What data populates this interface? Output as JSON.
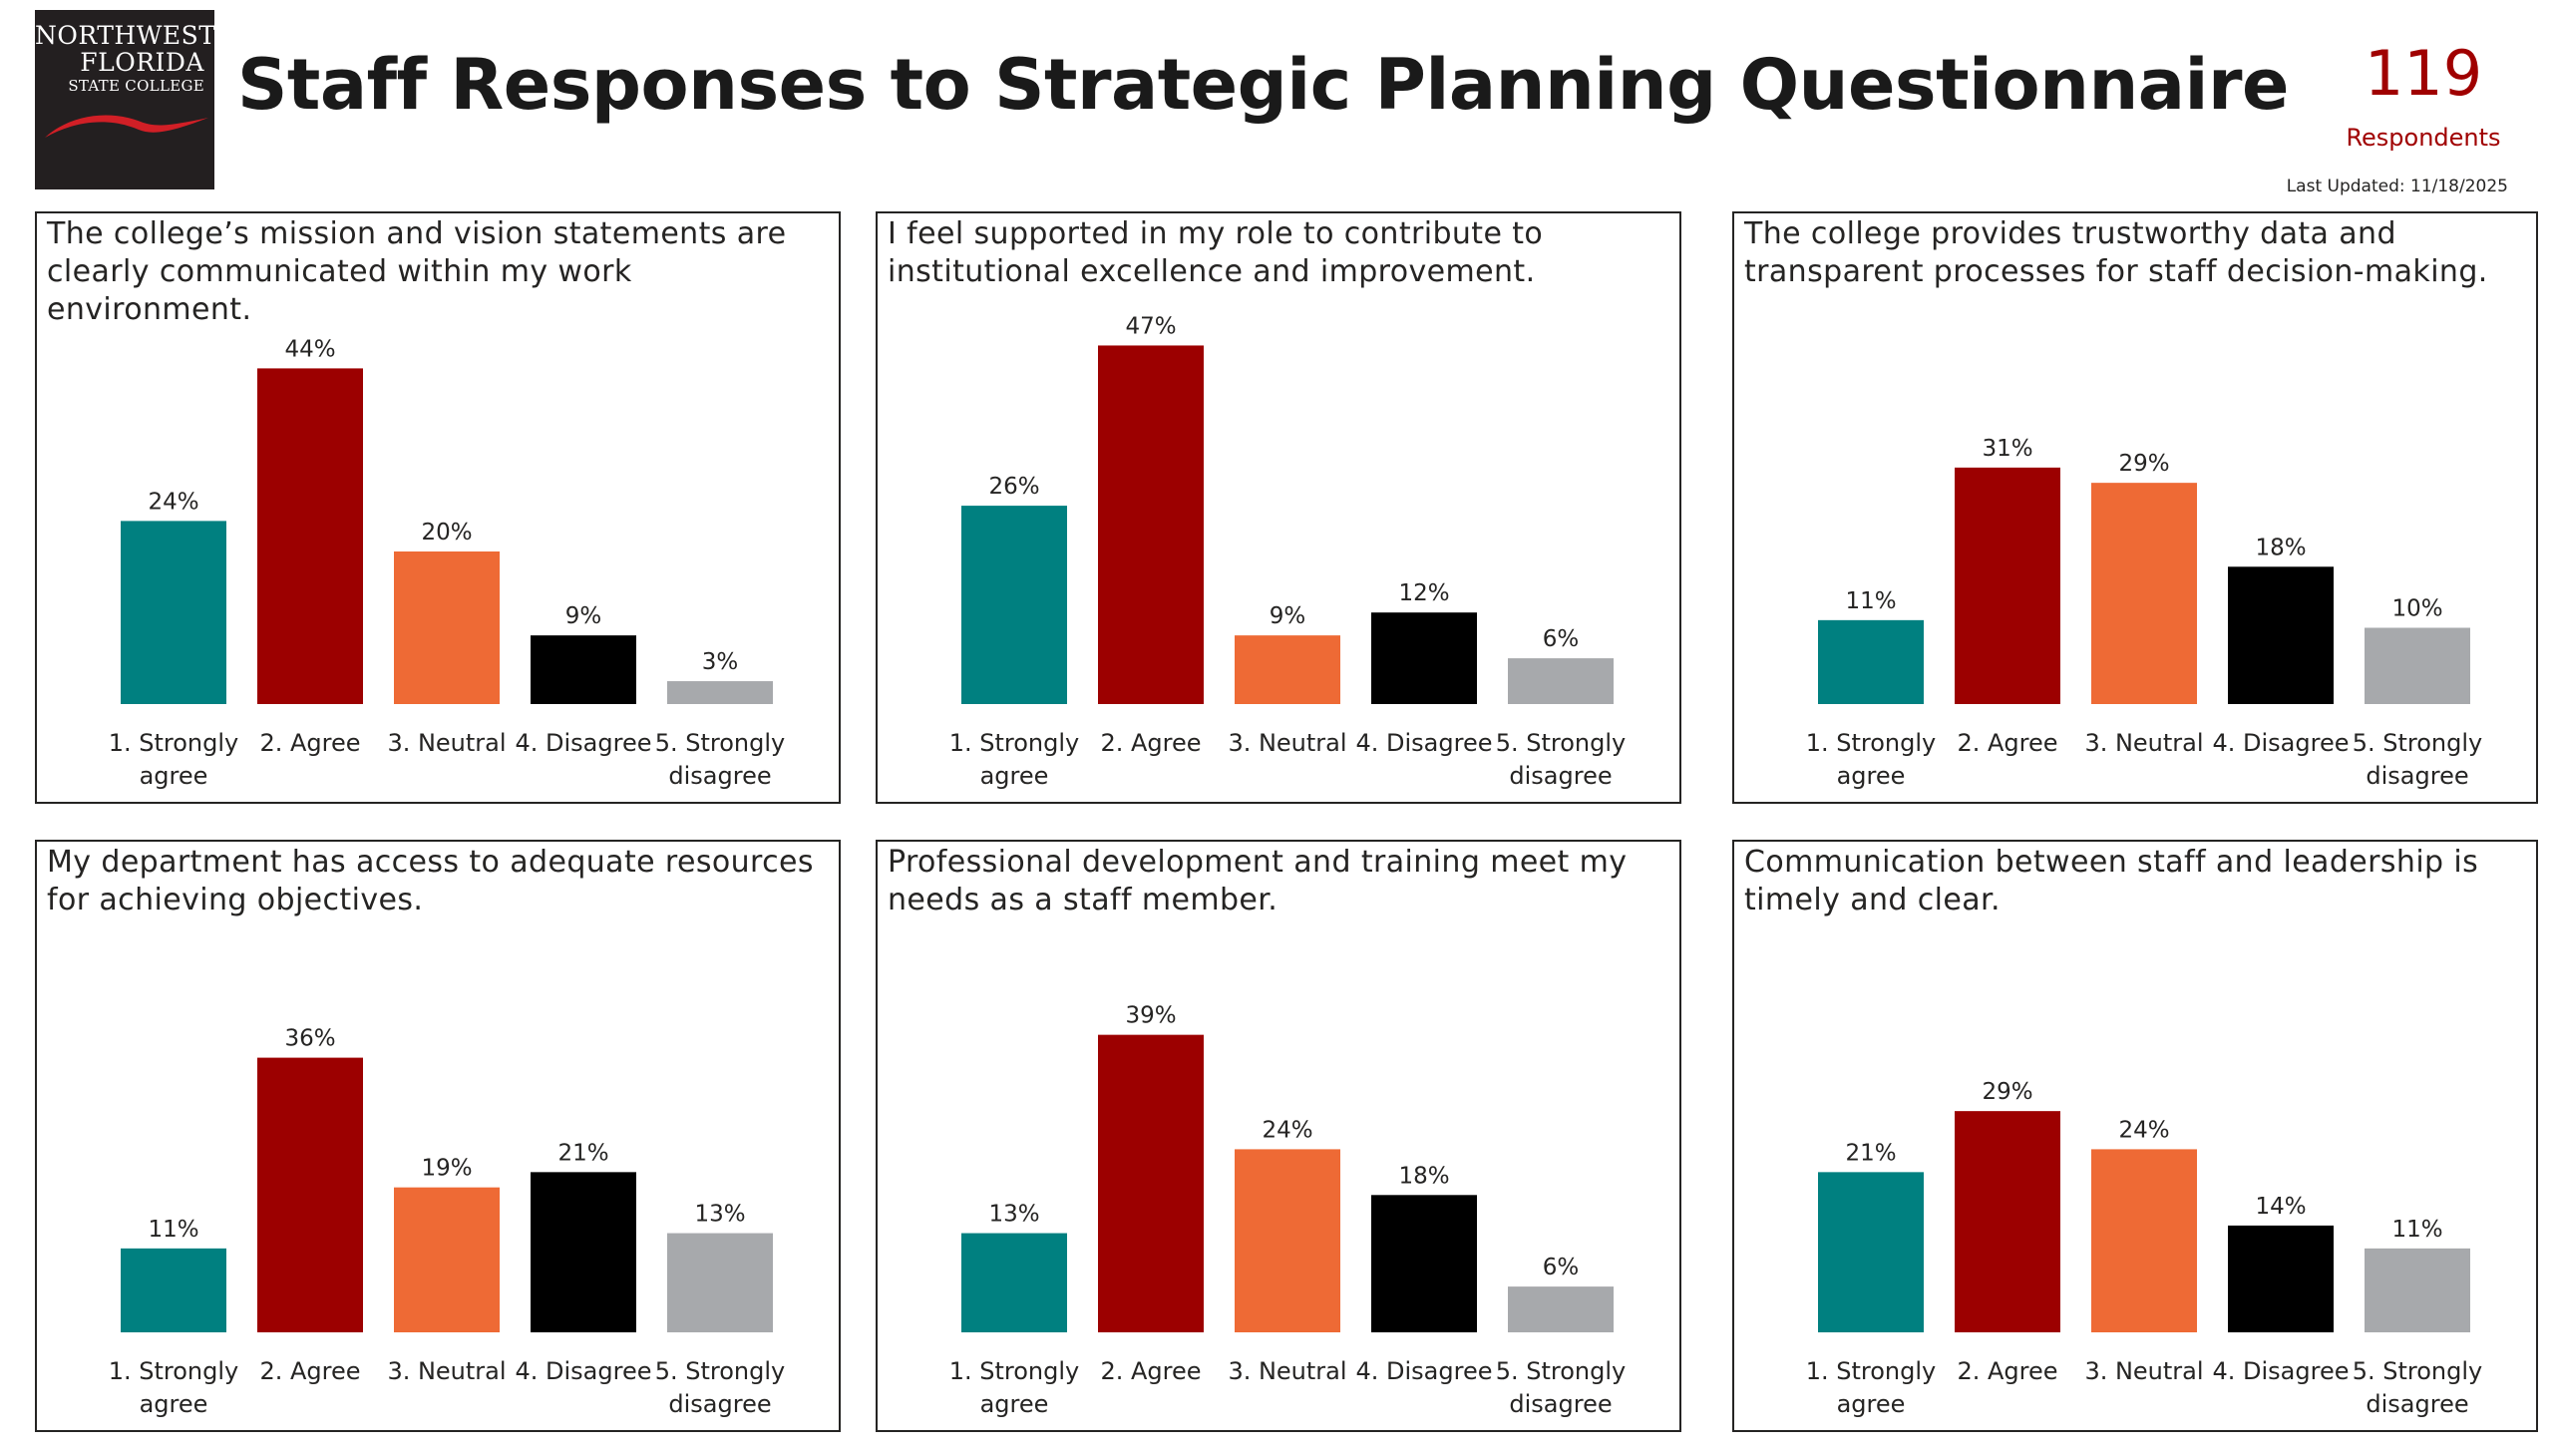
{
  "header": {
    "logo": {
      "line1": "NORTHWEST",
      "line2": "FLORIDA",
      "line3": "STATE COLLEGE"
    },
    "title": "Staff Responses to Strategic Planning Questionnaire",
    "respondent_count": "119",
    "respondent_label": "Respondents",
    "last_updated": "Last Updated: 11/18/2025"
  },
  "colors": [
    "#008080",
    "#9c0000",
    "#ee6a35",
    "#000000",
    "#a7a9ac"
  ],
  "chart_data": [
    {
      "type": "bar",
      "title": "The college’s mission and vision statements are clearly communicated within my work environment.",
      "categories": [
        "1. Strongly agree",
        "2. Agree",
        "3. Neutral",
        "4. Disagree",
        "5. Strongly disagree"
      ],
      "values": [
        24,
        44,
        20,
        9,
        3
      ],
      "value_labels": [
        "24%",
        "44%",
        "20%",
        "9%",
        "3%"
      ],
      "ylim": [
        0,
        50
      ],
      "grid": false,
      "legend": "none"
    },
    {
      "type": "bar",
      "title": "I feel supported in my role to contribute to institutional excellence and improvement.",
      "categories": [
        "1. Strongly agree",
        "2. Agree",
        "3. Neutral",
        "4. Disagree",
        "5. Strongly disagree"
      ],
      "values": [
        26,
        47,
        9,
        12,
        6
      ],
      "value_labels": [
        "26%",
        "47%",
        "9%",
        "12%",
        "6%"
      ],
      "ylim": [
        0,
        50
      ],
      "grid": false,
      "legend": "none"
    },
    {
      "type": "bar",
      "title": "The college provides trustworthy data and transparent processes for staff decision-making.",
      "categories": [
        "1. Strongly agree",
        "2. Agree",
        "3. Neutral",
        "4. Disagree",
        "5. Strongly disagree"
      ],
      "values": [
        11,
        31,
        29,
        18,
        10
      ],
      "value_labels": [
        "11%",
        "31%",
        "29%",
        "18%",
        "10%"
      ],
      "ylim": [
        0,
        50
      ],
      "grid": false,
      "legend": "none"
    },
    {
      "type": "bar",
      "title": "My department has access to adequate resources for achieving objectives.",
      "categories": [
        "1. Strongly agree",
        "2. Agree",
        "3. Neutral",
        "4. Disagree",
        "5. Strongly disagree"
      ],
      "values": [
        11,
        36,
        19,
        21,
        13
      ],
      "value_labels": [
        "11%",
        "36%",
        "19%",
        "21%",
        "13%"
      ],
      "ylim": [
        0,
        50
      ],
      "grid": false,
      "legend": "none"
    },
    {
      "type": "bar",
      "title": "Professional development and training meet my needs as a staff member.",
      "categories": [
        "1. Strongly agree",
        "2. Agree",
        "3. Neutral",
        "4. Disagree",
        "5. Strongly disagree"
      ],
      "values": [
        13,
        39,
        24,
        18,
        6
      ],
      "value_labels": [
        "13%",
        "39%",
        "24%",
        "18%",
        "6%"
      ],
      "ylim": [
        0,
        50
      ],
      "grid": false,
      "legend": "none"
    },
    {
      "type": "bar",
      "title": "Communication between staff and leadership is timely and clear.",
      "categories": [
        "1. Strongly agree",
        "2. Agree",
        "3. Neutral",
        "4. Disagree",
        "5. Strongly disagree"
      ],
      "values": [
        21,
        29,
        24,
        14,
        11
      ],
      "value_labels": [
        "21%",
        "29%",
        "24%",
        "14%",
        "11%"
      ],
      "ylim": [
        0,
        50
      ],
      "grid": false,
      "legend": "none"
    }
  ]
}
